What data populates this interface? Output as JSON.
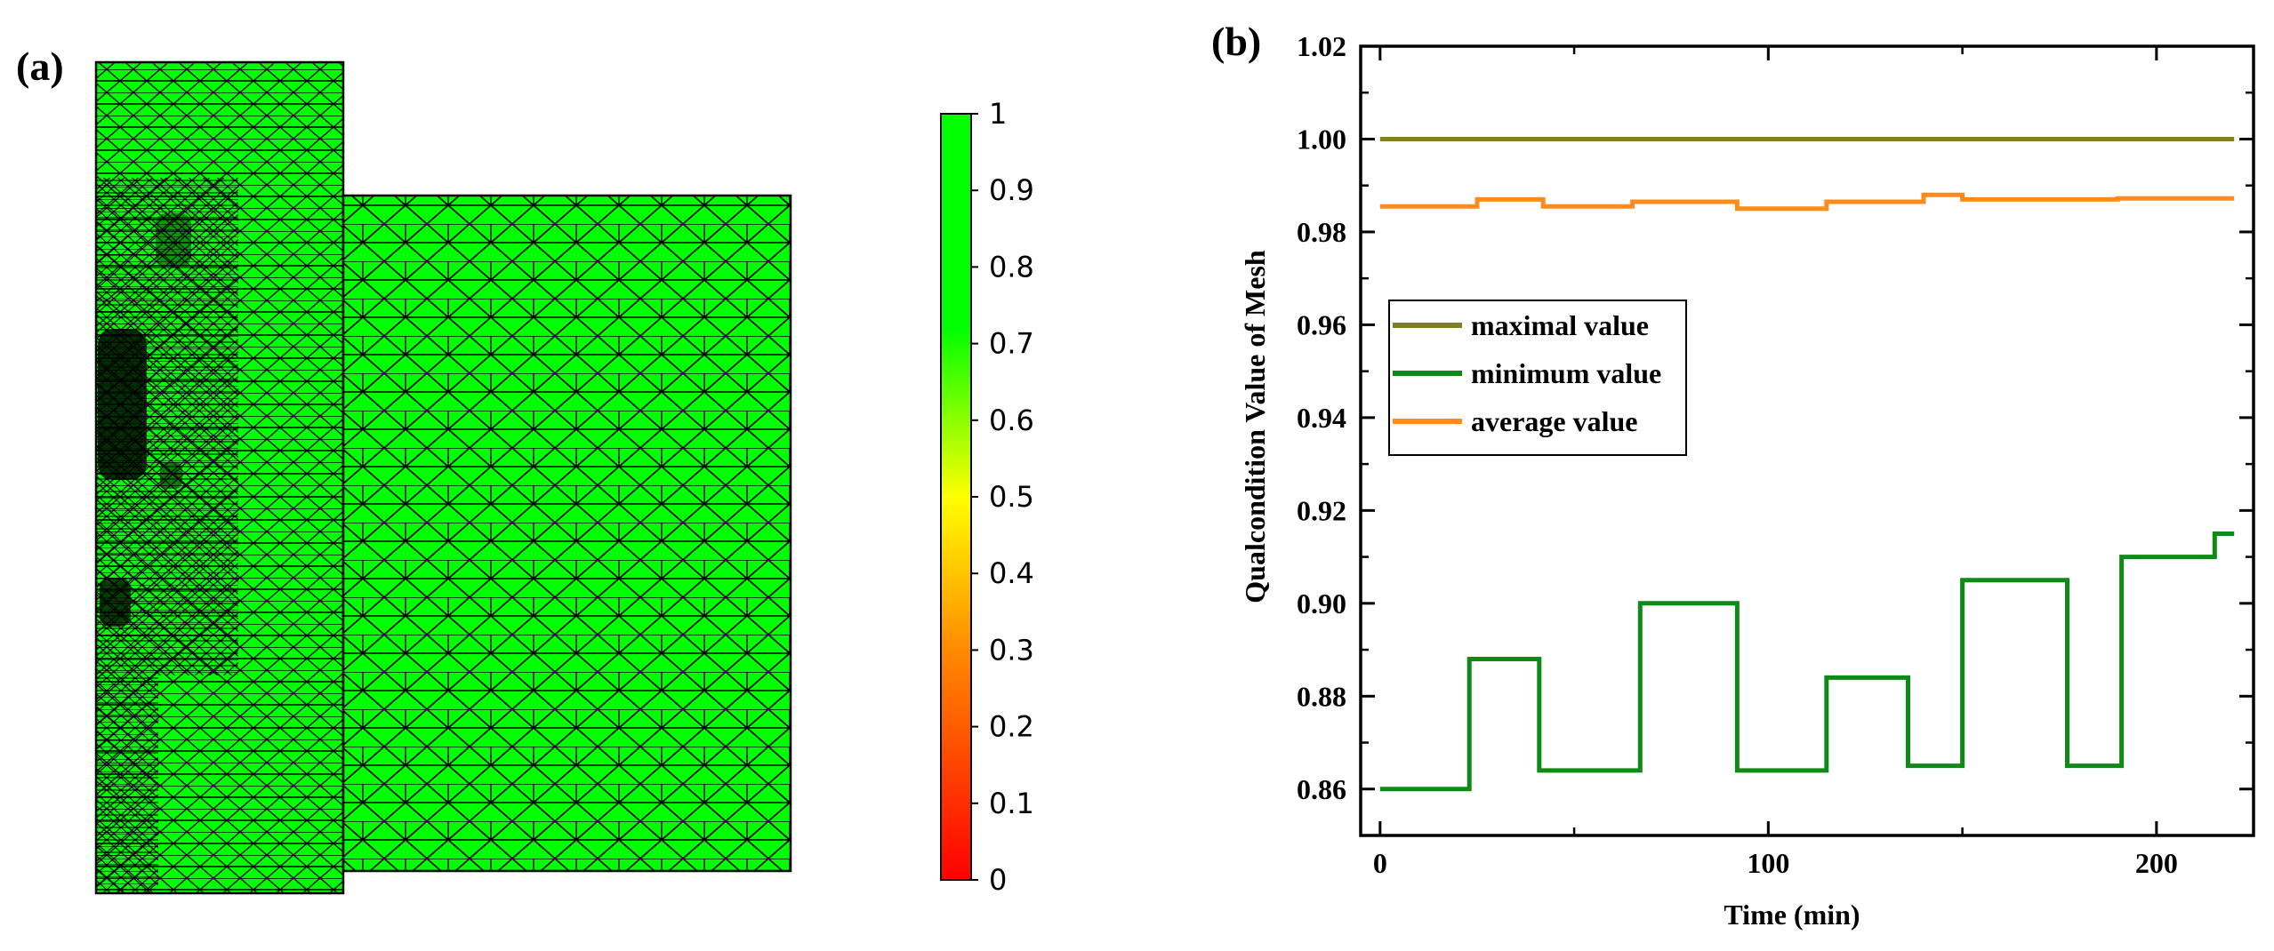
{
  "chart_data": [
    {
      "panel_label": "(a)",
      "type": "heatmap",
      "colorbar": {
        "ticks": [
          "1",
          "0.9",
          "0.8",
          "0.7",
          "0.6",
          "0.5",
          "0.4",
          "0.3",
          "0.2",
          "0.1",
          "0"
        ],
        "range": [
          0,
          1
        ],
        "colors": [
          "#ff0000",
          "#ff8a00",
          "#ffff00",
          "#00ff00"
        ]
      },
      "mesh_fill_color": "#00ff00",
      "mesh_line_color": "#000000"
    },
    {
      "panel_label": "(b)",
      "type": "line",
      "xlabel": "Time (min)",
      "ylabel": "Qualcondition  Value of Mesh",
      "xlim": [
        -5,
        225
      ],
      "ylim": [
        0.85,
        1.02
      ],
      "xticks": [
        "0",
        "100",
        "200"
      ],
      "xtick_values": [
        0,
        100,
        200
      ],
      "yticks": [
        "0.86",
        "0.88",
        "0.90",
        "0.92",
        "0.94",
        "0.96",
        "0.98",
        "1.00",
        "1.02"
      ],
      "ytick_values": [
        0.86,
        0.88,
        0.9,
        0.92,
        0.94,
        0.96,
        0.98,
        1.0,
        1.02
      ],
      "legend_position": "middle-left",
      "series": [
        {
          "name": "maximal value",
          "color": "#808020",
          "x": [
            0,
            220
          ],
          "y": [
            1.0,
            1.0
          ]
        },
        {
          "name": "minimum value",
          "color": "#0e8a16",
          "x": [
            0,
            23,
            23,
            41,
            41,
            67,
            67,
            92,
            92,
            115,
            115,
            136,
            136,
            150,
            150,
            177,
            177,
            191,
            191,
            215,
            215,
            220
          ],
          "y": [
            0.86,
            0.86,
            0.888,
            0.888,
            0.864,
            0.864,
            0.9,
            0.9,
            0.864,
            0.864,
            0.884,
            0.884,
            0.865,
            0.865,
            0.905,
            0.905,
            0.865,
            0.865,
            0.91,
            0.91,
            0.915,
            0.915
          ]
        },
        {
          "name": "average value",
          "color": "#ff8c1a",
          "x": [
            0,
            25,
            25,
            42,
            42,
            65,
            65,
            92,
            92,
            115,
            115,
            140,
            140,
            150,
            150,
            190,
            190,
            220
          ],
          "y": [
            0.9855,
            0.9855,
            0.987,
            0.987,
            0.9855,
            0.9855,
            0.9865,
            0.9865,
            0.985,
            0.985,
            0.9865,
            0.9865,
            0.988,
            0.988,
            0.987,
            0.987,
            0.9872,
            0.9872
          ]
        }
      ]
    }
  ]
}
